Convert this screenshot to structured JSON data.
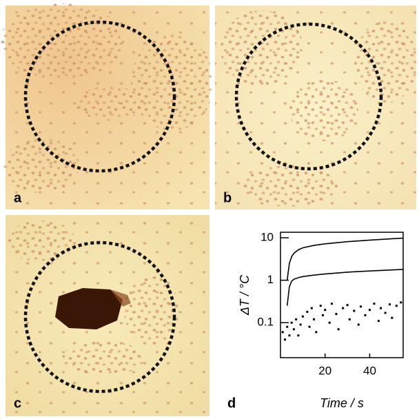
{
  "panels": {
    "labels": [
      "a",
      "b",
      "c",
      "d"
    ]
  },
  "chart_data": {
    "type": "line",
    "x_label": "Time / s",
    "y_label": "ΔT / °C",
    "xlim": [
      0,
      55
    ],
    "xticks": [
      20,
      40
    ],
    "ylim": [
      0.015,
      13.5
    ],
    "yticks": [
      0.1,
      1,
      10
    ],
    "log_y": true,
    "grid": false,
    "series": [
      {
        "color": "#000000",
        "style": "line",
        "x": [
          3,
          4,
          5,
          6,
          8,
          10,
          15,
          20,
          30,
          40,
          50,
          55
        ],
        "values": [
          1.0,
          2.5,
          3.6,
          4.3,
          5.2,
          5.8,
          6.6,
          7.2,
          8.1,
          8.8,
          9.5,
          9.8
        ]
      },
      {
        "color": "#000000",
        "style": "line",
        "x": [
          3,
          4,
          5,
          6,
          8,
          10,
          15,
          20,
          30,
          40,
          50,
          55
        ],
        "values": [
          0.25,
          0.7,
          0.95,
          1.05,
          1.15,
          1.22,
          1.32,
          1.4,
          1.55,
          1.65,
          1.75,
          1.8
        ]
      },
      {
        "color": "#000000",
        "style": "points",
        "x": [
          1,
          2,
          3,
          4,
          5,
          6,
          7,
          8,
          9,
          10,
          12,
          13,
          14,
          15,
          16,
          18,
          19,
          20,
          22,
          23,
          25,
          26,
          28,
          30,
          31,
          33,
          35,
          36,
          38,
          40,
          42,
          44,
          45,
          47,
          49,
          50,
          52,
          54
        ],
        "values": [
          0.06,
          0.04,
          0.08,
          0.05,
          0.1,
          0.07,
          0.12,
          0.05,
          0.09,
          0.14,
          0.18,
          0.08,
          0.22,
          0.12,
          0.06,
          0.25,
          0.15,
          0.2,
          0.1,
          0.28,
          0.16,
          0.07,
          0.22,
          0.26,
          0.12,
          0.19,
          0.09,
          0.24,
          0.15,
          0.2,
          0.28,
          0.11,
          0.22,
          0.17,
          0.27,
          0.13,
          0.25,
          0.3
        ]
      }
    ]
  }
}
